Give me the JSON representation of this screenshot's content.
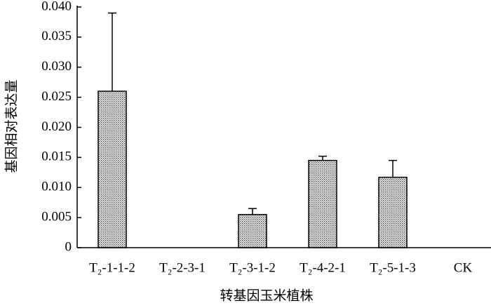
{
  "chart_data": {
    "type": "bar",
    "y_label": "基因相对表达量",
    "x_label": "转基因玉米植株",
    "categories": [
      "T₂-1-1-2",
      "T₂-2-3-1",
      "T₂-3-1-2",
      "T₂-4-2-1",
      "T₂-5-1-3",
      "CK"
    ],
    "values": [
      0.026,
      0,
      0.0055,
      0.0145,
      0.0117,
      0
    ],
    "errors": [
      0.013,
      null,
      0.001,
      0.0007,
      0.0028,
      null
    ],
    "color": "#c8c8c8",
    "ylim": [
      0,
      0.04
    ],
    "yticks": [
      0,
      0.005,
      {
        "value": 0.01,
        "label": "0.010"
      },
      0.015,
      {
        "value": 0.02,
        "label": "0.020"
      },
      0.025,
      {
        "value": 0.03,
        "label": "0.030"
      },
      0.035,
      {
        "value": 0.04,
        "label": "0.040"
      }
    ],
    "grid": false
  }
}
